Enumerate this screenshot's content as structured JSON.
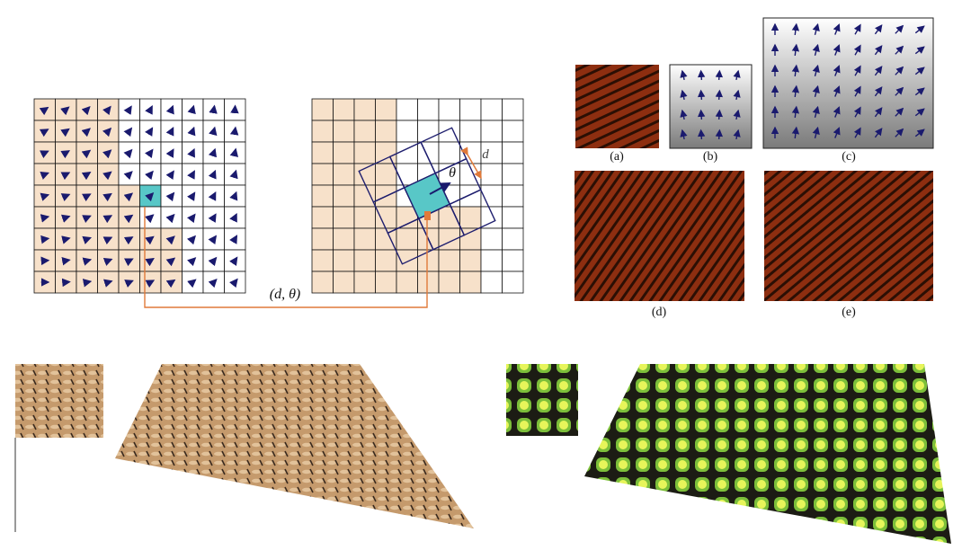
{
  "colors": {
    "grid_line": "#1e1e6e",
    "arrow": "#1a1a6e",
    "shaded_cell": "#f7e1ca",
    "selected_cell": "#58c7c7",
    "connector": "#e07a3a",
    "stripe_dark": "#2b0f04",
    "stripe_light": "#8d2e10",
    "tile_green": "#a9e23a",
    "tile_border": "#1c1c14",
    "weave_tan": "#c59a6c",
    "weave_dark": "#3a2a1e"
  },
  "labels": {
    "connector": "(d, θ)",
    "theta": "θ",
    "distance": "d",
    "a": "(a)",
    "b": "(b)",
    "c": "(c)",
    "d": "(d)",
    "e": "(e)"
  },
  "icons": {
    "vector_arrow": "arrow-icon",
    "red_marker": "marker-icon"
  }
}
